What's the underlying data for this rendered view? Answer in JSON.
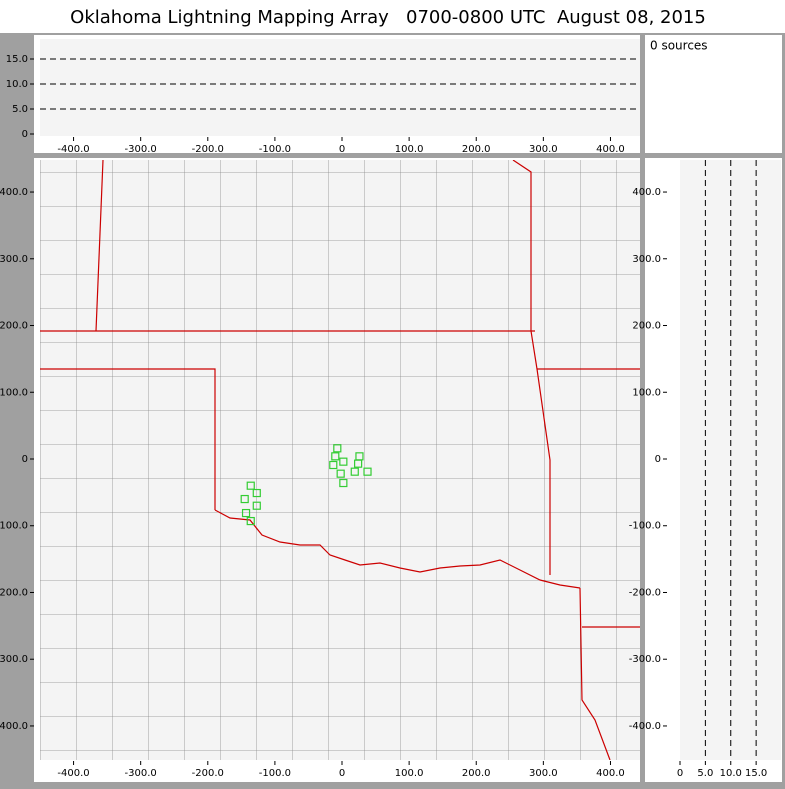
{
  "title": "Oklahoma Lightning Mapping Array   0700-0800 UTC  August 08, 2015",
  "sources_label": "0 sources",
  "chart_data": [
    {
      "type": "scatter",
      "xlim": [
        -450,
        444
      ],
      "ylim": [
        0,
        19
      ],
      "xticks": [
        {
          "value": -400,
          "label": "-400.0"
        },
        {
          "value": -300,
          "label": "-300.0"
        },
        {
          "value": -200,
          "label": "-200.0"
        },
        {
          "value": -100,
          "label": "-100.0"
        },
        0,
        {
          "value": 100,
          "label": "100.0"
        },
        {
          "value": 200,
          "label": "200.0"
        },
        {
          "value": 300,
          "label": "300.0"
        },
        {
          "value": 400,
          "label": "400.0"
        }
      ],
      "yticks": [
        0,
        {
          "value": 5,
          "label": "5.0"
        },
        {
          "value": 10,
          "label": "10.0"
        },
        {
          "value": 15,
          "label": "15.0"
        }
      ],
      "grid": "y"
    },
    {
      "type": "scatter",
      "xlim": [
        -450,
        444
      ],
      "ylim": [
        -451,
        448
      ],
      "xticks": [
        {
          "value": -400,
          "label": "-400.0"
        },
        {
          "value": -300,
          "label": "-300.0"
        },
        {
          "value": -200,
          "label": "-200.0"
        },
        {
          "value": -100,
          "label": "-100.0"
        },
        0,
        {
          "value": 100,
          "label": "100.0"
        },
        {
          "value": 200,
          "label": "200.0"
        },
        {
          "value": 300,
          "label": "300.0"
        },
        {
          "value": 400,
          "label": "400.0"
        }
      ],
      "yticks": [
        {
          "value": -400,
          "label": "-400.0"
        },
        {
          "value": -300,
          "label": "-300.0"
        },
        {
          "value": -200,
          "label": "-200.0"
        },
        {
          "value": -100,
          "label": "-100.0"
        },
        0,
        {
          "value": 100,
          "label": "100.0"
        },
        {
          "value": 200,
          "label": "200.0"
        },
        {
          "value": 300,
          "label": "300.0"
        },
        {
          "value": 400,
          "label": "400.0"
        }
      ],
      "marker": "square",
      "color": "#33cc33",
      "x": [
        -7,
        -10,
        2,
        -13,
        26,
        24,
        -2,
        19,
        38,
        2,
        -136,
        -127,
        -145,
        -127,
        -143,
        -136
      ],
      "y": [
        16,
        4,
        -4,
        -9,
        4,
        -7,
        -22,
        -19,
        -19,
        -36,
        -40,
        -51,
        -60,
        -70,
        -81,
        -93
      ]
    },
    {
      "type": "scatter",
      "xlim": [
        0,
        19.9
      ],
      "ylim": [
        -451,
        448
      ],
      "xticks": [
        0,
        {
          "value": 5,
          "label": "5.0"
        },
        {
          "value": 10,
          "label": "10.0"
        },
        {
          "value": 15,
          "label": "15.0"
        }
      ],
      "yticks": [
        {
          "value": -400,
          "label": "-400.0"
        },
        {
          "value": -300,
          "label": "-300.0"
        },
        {
          "value": -200,
          "label": "-200.0"
        },
        {
          "value": -100,
          "label": "-100.0"
        },
        0,
        {
          "value": 100,
          "label": "100.0"
        },
        {
          "value": 200,
          "label": "200.0"
        },
        {
          "value": 300,
          "label": "300.0"
        },
        {
          "value": 400,
          "label": "400.0"
        }
      ],
      "grid": "x"
    }
  ]
}
